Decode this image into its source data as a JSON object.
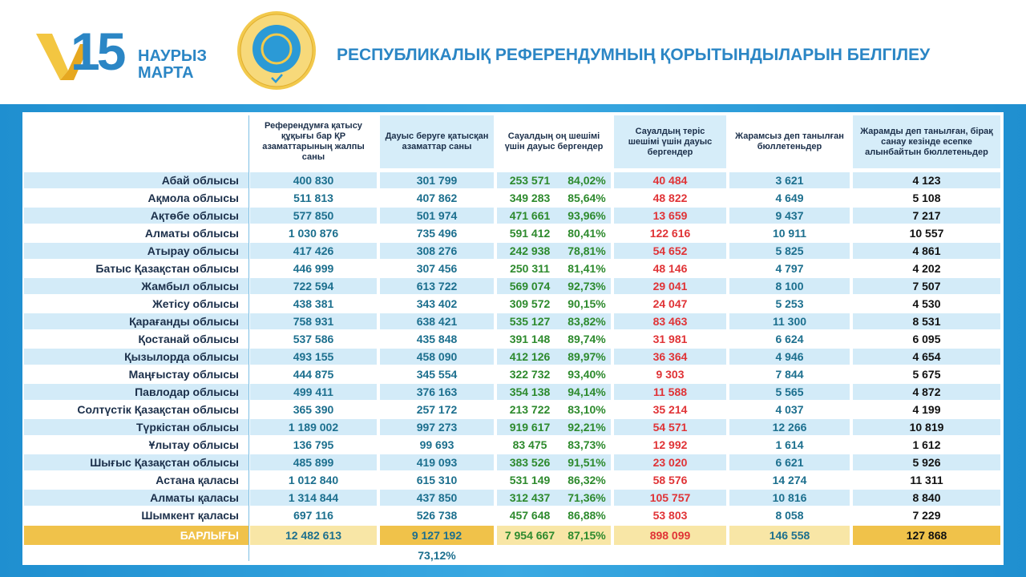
{
  "header": {
    "logo_number": "15",
    "logo_line1": "НАУРЫЗ",
    "logo_line2": "МАРТА",
    "title": "РЕСПУБЛИКАЛЫҚ РЕФЕРЕНДУМНЫҢ ҚОРЫТЫНДЫЛАРЫН БЕЛГІЛЕУ"
  },
  "table": {
    "columns": [
      "Референдумға қатысу құқығы бар ҚР азаматтарының жалпы саны",
      "Дауыс беруге қатысқан азаматтар саны",
      "Сауалдың оң шешімі үшін дауыс бергендер",
      "Сауалдың теріс шешімі үшін дауыс бергендер",
      "Жарамсыз деп танылған бюллетеньдер",
      "Жарамды деп танылған, бірақ санау кезінде есепке алынбайтын бюллетеньдер"
    ],
    "rows": [
      [
        "Абай облысы",
        "400 830",
        "301 799",
        "253 571",
        "84,02%",
        "40 484",
        "3 621",
        "4 123"
      ],
      [
        "Ақмола облысы",
        "511 813",
        "407 862",
        "349 283",
        "85,64%",
        "48 822",
        "4 649",
        "5 108"
      ],
      [
        "Ақтөбе облысы",
        "577 850",
        "501 974",
        "471 661",
        "93,96%",
        "13 659",
        "9 437",
        "7 217"
      ],
      [
        "Алматы облысы",
        "1 030 876",
        "735 496",
        "591 412",
        "80,41%",
        "122 616",
        "10 911",
        "10 557"
      ],
      [
        "Атырау облысы",
        "417 426",
        "308 276",
        "242 938",
        "78,81%",
        "54 652",
        "5 825",
        "4 861"
      ],
      [
        "Батыс Қазақстан облысы",
        "446 999",
        "307 456",
        "250 311",
        "81,41%",
        "48 146",
        "4 797",
        "4 202"
      ],
      [
        "Жамбыл облысы",
        "722 594",
        "613 722",
        "569 074",
        "92,73%",
        "29 041",
        "8 100",
        "7 507"
      ],
      [
        "Жетісу облысы",
        "438 381",
        "343 402",
        "309 572",
        "90,15%",
        "24 047",
        "5 253",
        "4 530"
      ],
      [
        "Қарағанды облысы",
        "758 931",
        "638 421",
        "535 127",
        "83,82%",
        "83 463",
        "11 300",
        "8 531"
      ],
      [
        "Қостанай облысы",
        "537 586",
        "435 848",
        "391 148",
        "89,74%",
        "31 981",
        "6 624",
        "6 095"
      ],
      [
        "Қызылорда облысы",
        "493 155",
        "458 090",
        "412 126",
        "89,97%",
        "36 364",
        "4 946",
        "4 654"
      ],
      [
        "Маңғыстау облысы",
        "444 875",
        "345 554",
        "322 732",
        "93,40%",
        "9 303",
        "7 844",
        "5 675"
      ],
      [
        "Павлодар облысы",
        "499 411",
        "376 163",
        "354 138",
        "94,14%",
        "11 588",
        "5 565",
        "4 872"
      ],
      [
        "Солтүстік Қазақстан облысы",
        "365 390",
        "257 172",
        "213 722",
        "83,10%",
        "35 214",
        "4 037",
        "4 199"
      ],
      [
        "Түркістан облысы",
        "1 189 002",
        "997 273",
        "919 617",
        "92,21%",
        "54 571",
        "12 266",
        "10 819"
      ],
      [
        "Ұлытау облысы",
        "136 795",
        "99 693",
        "83 475",
        "83,73%",
        "12 992",
        "1 614",
        "1 612"
      ],
      [
        "Шығыс Қазақстан облысы",
        "485 899",
        "419 093",
        "383 526",
        "91,51%",
        "23 020",
        "6 621",
        "5 926"
      ],
      [
        "Астана қаласы",
        "1 012 840",
        "615 310",
        "531 149",
        "86,32%",
        "58 576",
        "14 274",
        "11 311"
      ],
      [
        "Алматы қаласы",
        "1 314 844",
        "437 850",
        "312 437",
        "71,36%",
        "105 757",
        "10 816",
        "8 840"
      ],
      [
        "Шымкент қаласы",
        "697 116",
        "526 738",
        "457 648",
        "86,88%",
        "53 803",
        "8 058",
        "7 229"
      ]
    ],
    "total": [
      "БАРЛЫҒЫ",
      "12 482 613",
      "9 127 192",
      "7 954 667",
      "87,15%",
      "898 099",
      "146 558",
      "127 868"
    ],
    "turnout": "73,12%"
  }
}
